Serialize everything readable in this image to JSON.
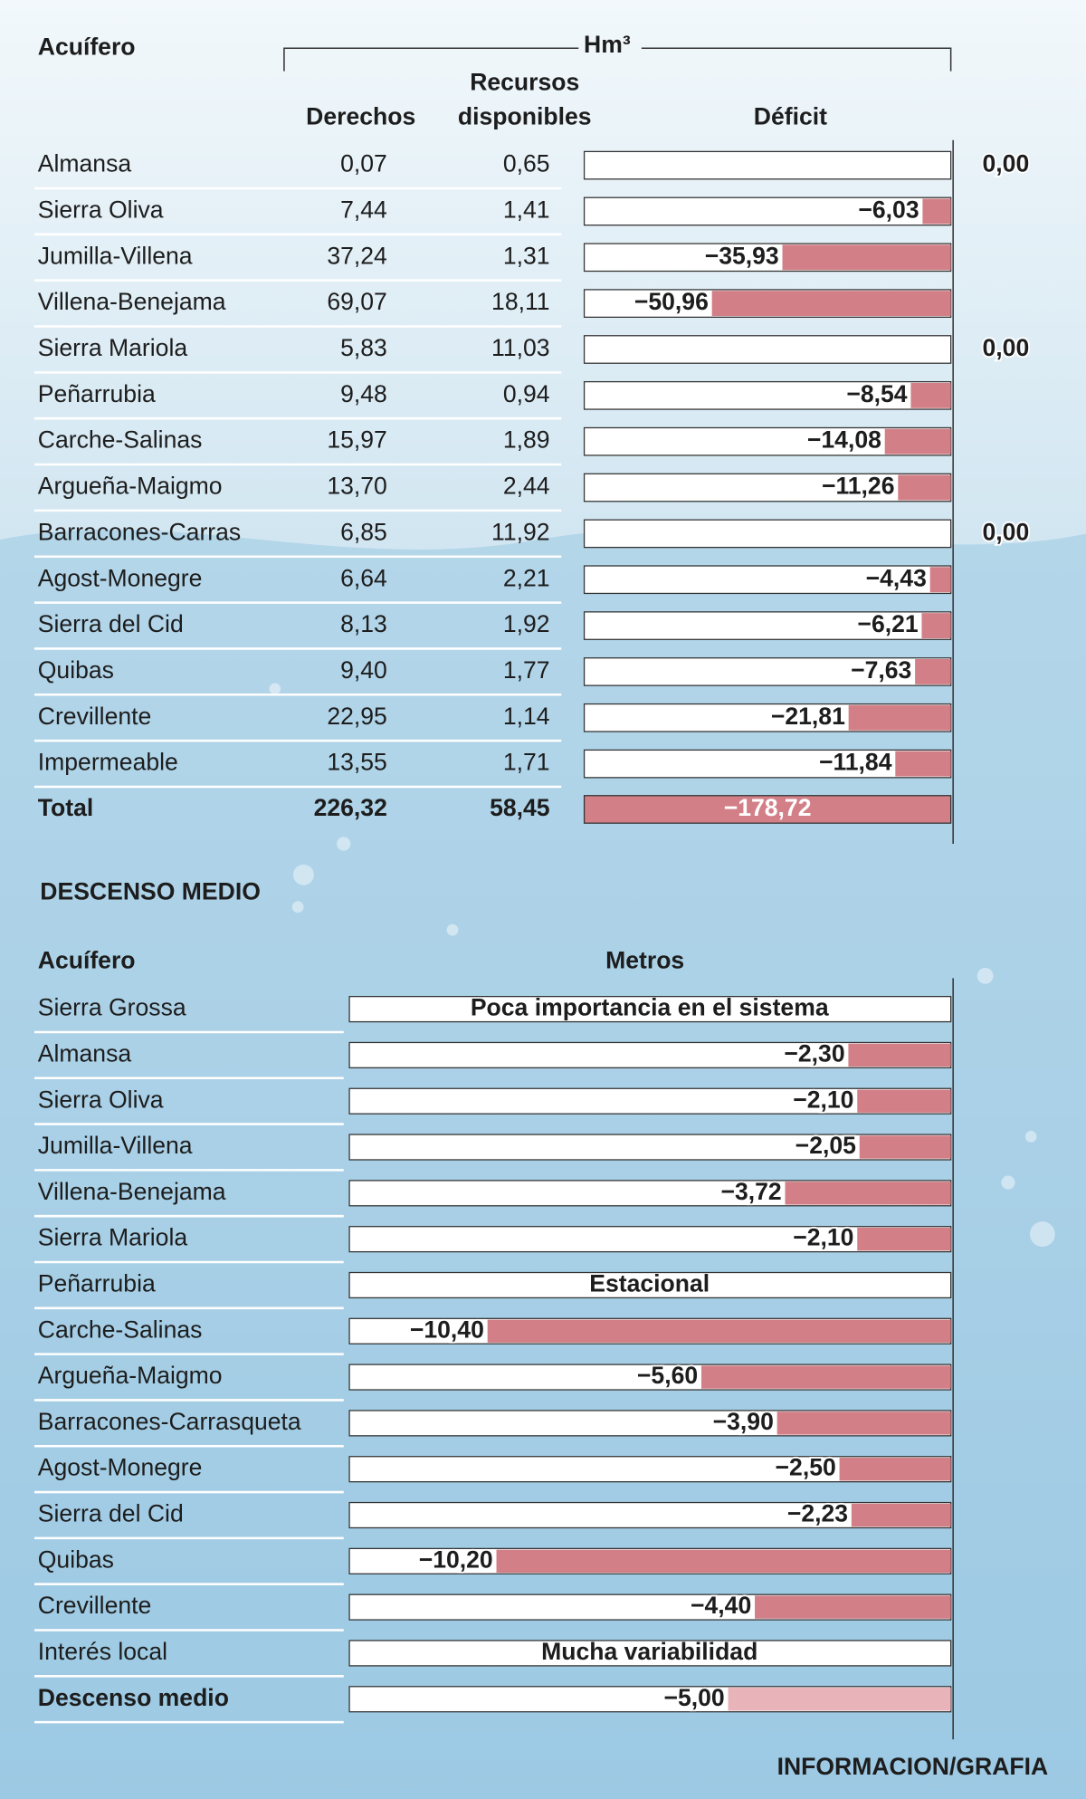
{
  "chart_data": [
    {
      "type": "hbar",
      "category_label": "Acuífero",
      "unit": "Hm³",
      "value_name": "Déficit",
      "categories": [
        "Almansa",
        "Sierra Oliva",
        "Jumilla-Villena",
        "Villena-Benejama",
        "Sierra Mariola",
        "Peñarrubia",
        "Carche-Salinas",
        "Argueña-Maigmo",
        "Barracones-Carras",
        "Agost-Monegre",
        "Sierra del Cid",
        "Quibas",
        "Crevillente",
        "Impermeable"
      ],
      "table_columns": [
        {
          "name_lines": [
            "Derechos"
          ],
          "values": [
            0.07,
            7.44,
            37.24,
            69.07,
            5.83,
            9.48,
            15.97,
            13.7,
            6.85,
            6.64,
            8.13,
            9.4,
            22.95,
            13.55
          ],
          "value_labels": [
            "0,07",
            "7,44",
            "37,24",
            "69,07",
            "5,83",
            "9,48",
            "15,97",
            "13,70",
            "6,85",
            "6,64",
            "8,13",
            "9,40",
            "22,95",
            "13,55"
          ]
        },
        {
          "name_lines": [
            "Recursos",
            "disponibles"
          ],
          "values": [
            0.65,
            1.41,
            1.31,
            18.11,
            11.03,
            0.94,
            1.89,
            2.44,
            11.92,
            2.21,
            1.92,
            1.77,
            1.14,
            1.71
          ],
          "value_labels": [
            "0,65",
            "1,41",
            "1,31",
            "18,11",
            "11,03",
            "0,94",
            "1,89",
            "2,44",
            "11,92",
            "2,21",
            "1,92",
            "1,77",
            "1,14",
            "1,71"
          ]
        }
      ],
      "values": [
        0,
        -6.03,
        -35.93,
        -50.96,
        0,
        -8.54,
        -14.08,
        -11.26,
        0,
        -4.43,
        -6.21,
        -7.63,
        -21.81,
        -11.84
      ],
      "value_labels": [
        "0,00",
        "−6,03",
        "−35,93",
        "−50,96",
        "0,00",
        "−8,54",
        "−14,08",
        "−11,26",
        "0,00",
        "−4,43",
        "−6,21",
        "−7,63",
        "−21,81",
        "−11,84"
      ],
      "total": {
        "name": "Total",
        "values": [
          226.32,
          58.45,
          -178.72
        ],
        "value_labels": [
          "226,32",
          "58,45",
          "−178,72"
        ]
      },
      "xlim": [
        -78.2,
        0
      ],
      "color": "#d27f88"
    },
    {
      "type": "hbar",
      "title": "DESCENSO MEDIO",
      "category_label": "Acuífero",
      "value_name": "Metros",
      "categories": [
        "Sierra Grossa",
        "Almansa",
        "Sierra Oliva",
        "Jumilla-Villena",
        "Villena-Benejama",
        "Sierra Mariola",
        "Peñarrubia",
        "Carche-Salinas",
        "Argueña-Maigmo",
        "Barracones-Carrasqueta",
        "Agost-Monegre",
        "Sierra del Cid",
        "Quibas",
        "Crevillente",
        "Interés local",
        "Descenso medio"
      ],
      "values": [
        null,
        -2.3,
        -2.1,
        -2.05,
        -3.72,
        -2.1,
        null,
        -10.4,
        -5.6,
        -3.9,
        -2.5,
        -2.23,
        -10.2,
        -4.4,
        null,
        -5.0
      ],
      "value_labels": [
        null,
        "−2,30",
        "−2,10",
        "−2,05",
        "−3,72",
        "−2,10",
        null,
        "−10,40",
        "−5,60",
        "−3,90",
        "−2,50",
        "−2,23",
        "−10,20",
        "−4,40",
        null,
        "−5,00"
      ],
      "notes": [
        "Poca importancia en el sistema",
        null,
        null,
        null,
        null,
        null,
        "Estacional",
        null,
        null,
        null,
        null,
        null,
        null,
        null,
        "Mucha variabilidad",
        null
      ],
      "xlim": [
        -13.5,
        0
      ],
      "color": "#d27f88",
      "summary_color": "#e8b3b9"
    }
  ],
  "credit": "INFORMACION/GRAFIA"
}
